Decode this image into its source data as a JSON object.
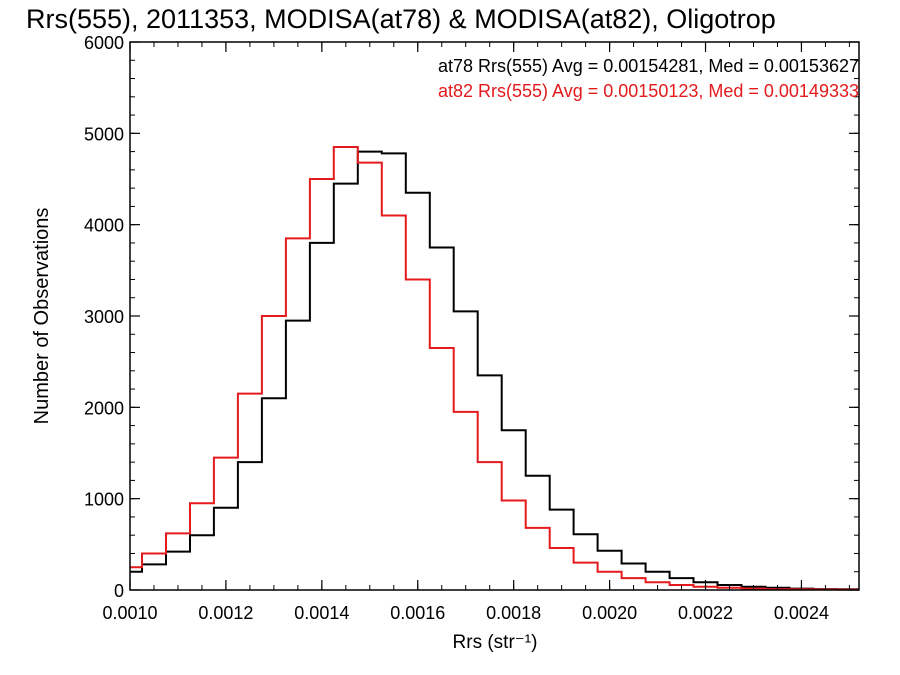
{
  "chart_data": {
    "type": "line",
    "title": "Rrs(555), 2011353, MODISA(at78) & MODISA(at82), Oligotrop",
    "xlabel": "Rrs (str⁻¹)",
    "ylabel": "Number of Observations",
    "xlim": [
      0.001,
      0.00252
    ],
    "ylim": [
      0,
      6000
    ],
    "xticks": [
      "0.0010",
      "0.0012",
      "0.0014",
      "0.0016",
      "0.0018",
      "0.0020",
      "0.0022",
      "0.0024"
    ],
    "yticks": [
      "0",
      "1000",
      "2000",
      "3000",
      "4000",
      "5000",
      "6000"
    ],
    "legend_position": "top-right",
    "series": [
      {
        "name": "at78",
        "legend": "at78 Rrs(555) Avg = 0.00154281, Med = 0.00153627",
        "color": "#000000",
        "x": [
          0.001,
          0.00105,
          0.0011,
          0.00115,
          0.0012,
          0.00125,
          0.0013,
          0.00135,
          0.0014,
          0.00145,
          0.0015,
          0.00155,
          0.0016,
          0.00165,
          0.0017,
          0.00175,
          0.0018,
          0.00185,
          0.0019,
          0.00195,
          0.002,
          0.00205,
          0.0021,
          0.00215,
          0.0022,
          0.00225,
          0.0023,
          0.00235,
          0.0024,
          0.00245,
          0.0025
        ],
        "values": [
          200,
          280,
          420,
          600,
          900,
          1400,
          2100,
          2950,
          3800,
          4450,
          4800,
          4780,
          4350,
          3750,
          3050,
          2350,
          1750,
          1250,
          880,
          610,
          430,
          290,
          200,
          130,
          85,
          55,
          35,
          25,
          15,
          10,
          8
        ]
      },
      {
        "name": "at82",
        "legend": "at82 Rrs(555) Avg = 0.00150123, Med = 0.00149333",
        "color": "#e41a1c",
        "x": [
          0.001,
          0.00105,
          0.0011,
          0.00115,
          0.0012,
          0.00125,
          0.0013,
          0.00135,
          0.0014,
          0.00145,
          0.0015,
          0.00155,
          0.0016,
          0.00165,
          0.0017,
          0.00175,
          0.0018,
          0.00185,
          0.0019,
          0.00195,
          0.002,
          0.00205,
          0.0021,
          0.00215,
          0.0022,
          0.00225,
          0.0023,
          0.00235,
          0.0024,
          0.00245,
          0.0025
        ],
        "values": [
          250,
          400,
          620,
          950,
          1450,
          2150,
          3000,
          3850,
          4500,
          4850,
          4680,
          4100,
          3400,
          2650,
          1950,
          1400,
          980,
          680,
          460,
          300,
          200,
          130,
          85,
          55,
          35,
          25,
          15,
          10,
          8,
          5,
          4
        ]
      }
    ]
  }
}
